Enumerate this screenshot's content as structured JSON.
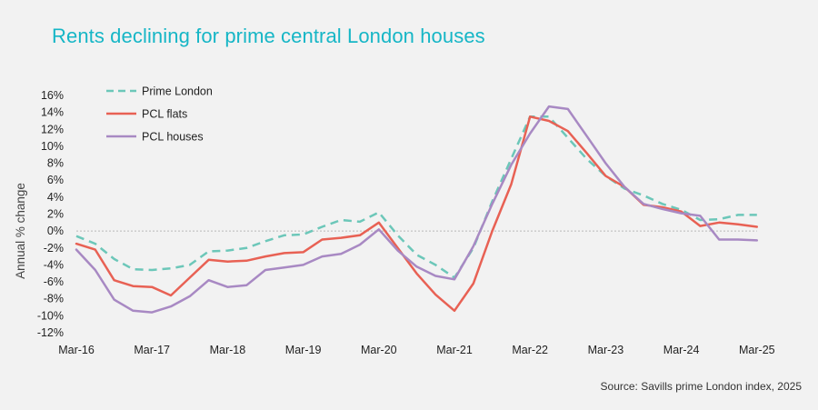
{
  "title": "Rents declining for prime central London houses",
  "source": "Source: Savills prime London index, 2025",
  "chart_data": {
    "type": "line",
    "title": "Rents declining for prime central London houses",
    "ylabel": "Annual % change",
    "xlabel": "",
    "ylim": [
      -12,
      16
    ],
    "yticks": [
      -12,
      -10,
      -8,
      -6,
      -4,
      -2,
      0,
      2,
      4,
      6,
      8,
      10,
      12,
      14,
      16
    ],
    "ytick_labels": [
      "-12%",
      "-10%",
      "-8%",
      "-6%",
      "-4%",
      "-2%",
      "0%",
      "2%",
      "4%",
      "6%",
      "8%",
      "10%",
      "12%",
      "14%",
      "16%"
    ],
    "xtick_labels": [
      "Mar-16",
      "Mar-17",
      "Mar-18",
      "Mar-19",
      "Mar-20",
      "Mar-21",
      "Mar-22",
      "Mar-23",
      "Mar-24",
      "Mar-25"
    ],
    "x_start": "Mar-16",
    "x_end": "Jun-25",
    "x_step": "quarter",
    "legend_position": "top-left",
    "grid": false,
    "zero_line": true,
    "series": [
      {
        "name": "Prime London",
        "color": "#6cc7b9",
        "style": "dashed",
        "values": [
          -0.6,
          -1.5,
          -3.3,
          -4.5,
          -4.6,
          -4.4,
          -4.0,
          -2.4,
          -2.3,
          -2.0,
          -1.2,
          -0.5,
          -0.4,
          0.5,
          1.3,
          1.1,
          2.2,
          -0.5,
          -2.8,
          -4.0,
          -5.5,
          -2.0,
          3.5,
          8.5,
          13.5,
          13.5,
          11.0,
          8.5,
          6.5,
          5.0,
          4.2,
          3.2,
          2.5,
          1.3,
          1.4,
          1.9,
          1.9
        ]
      },
      {
        "name": "PCL flats",
        "color": "#e86154",
        "style": "solid",
        "values": [
          -1.5,
          -2.2,
          -5.8,
          -6.5,
          -6.6,
          -7.6,
          -5.5,
          -3.4,
          -3.6,
          -3.5,
          -3.0,
          -2.6,
          -2.5,
          -1.0,
          -0.8,
          -0.5,
          1.0,
          -2.0,
          -5.0,
          -7.5,
          -9.4,
          -6.2,
          0.0,
          5.5,
          13.5,
          13.0,
          11.8,
          9.2,
          6.5,
          5.2,
          3.1,
          2.8,
          2.3,
          0.6,
          1.0,
          0.8,
          0.5
        ]
      },
      {
        "name": "PCL houses",
        "color": "#a889c3",
        "style": "solid",
        "values": [
          -2.2,
          -4.6,
          -8.1,
          -9.4,
          -9.6,
          -8.9,
          -7.7,
          -5.8,
          -6.6,
          -6.4,
          -4.6,
          -4.3,
          -4.0,
          -3.0,
          -2.7,
          -1.6,
          0.2,
          -2.3,
          -4.2,
          -5.3,
          -5.7,
          -1.8,
          3.2,
          7.8,
          11.5,
          14.7,
          14.4,
          11.2,
          8.0,
          5.2,
          3.2,
          2.6,
          2.1,
          1.8,
          -1.0,
          -1.0,
          -1.1
        ]
      }
    ]
  }
}
